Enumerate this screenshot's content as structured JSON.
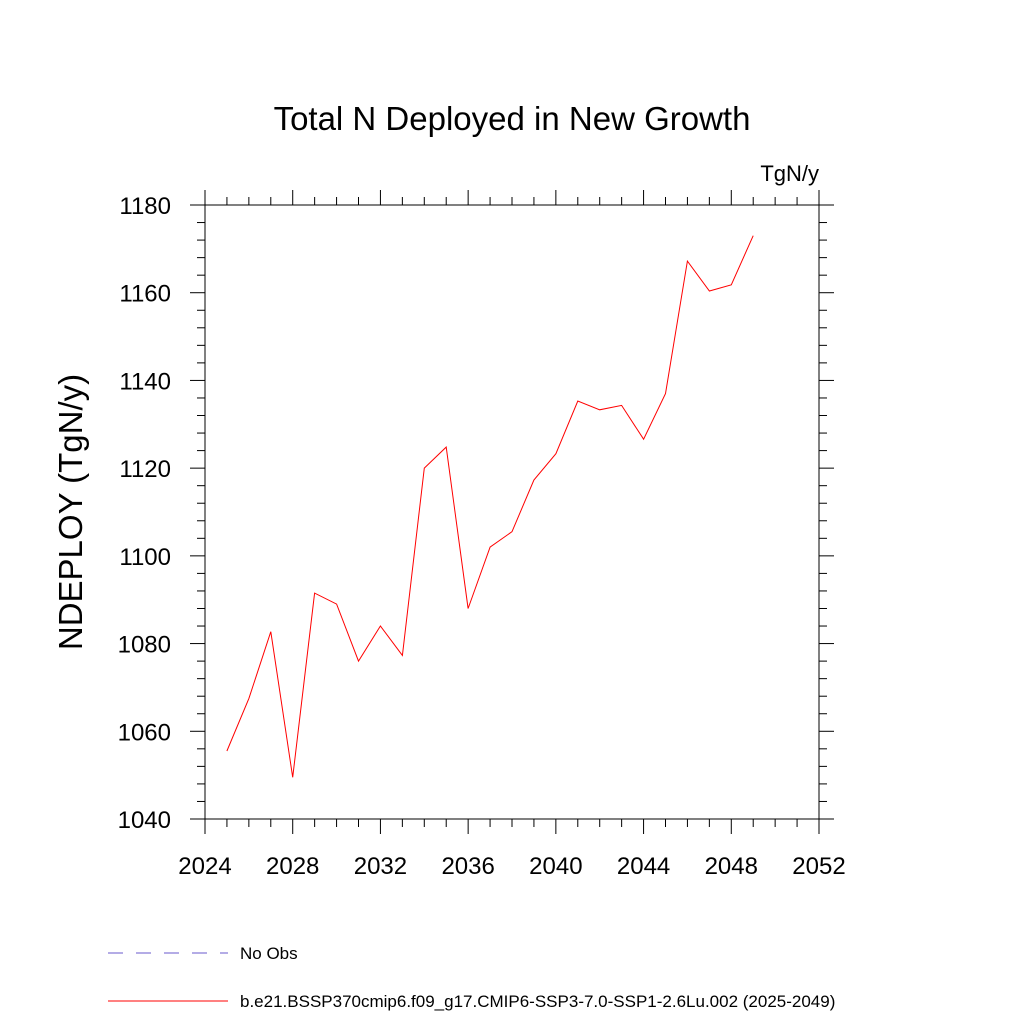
{
  "chart_data": {
    "type": "line",
    "title": "Total N Deployed in New Growth",
    "units_label": "TgN/y",
    "ylabel": "NDEPLOY  (TgN/y)",
    "xlabel": "",
    "xlim": [
      2024,
      2052
    ],
    "ylim": [
      1040,
      1180
    ],
    "xticks": [
      2024,
      2028,
      2032,
      2036,
      2040,
      2044,
      2048,
      2052
    ],
    "yticks": [
      1040,
      1060,
      1080,
      1100,
      1120,
      1140,
      1160,
      1180
    ],
    "grid": false,
    "series": [
      {
        "name": "b.e21.BSSP370cmip6.f09_g17.CMIP6-SSP3-7.0-SSP1-2.6Lu.002 (2025-2049)",
        "color": "#ff0000",
        "x": [
          2025,
          2026,
          2027,
          2028,
          2029,
          2030,
          2031,
          2032,
          2033,
          2034,
          2035,
          2036,
          2037,
          2038,
          2039,
          2040,
          2041,
          2042,
          2043,
          2044,
          2045,
          2046,
          2047,
          2048,
          2049
        ],
        "values": [
          1055.5,
          1067.5,
          1082.7,
          1049.5,
          1091.5,
          1089.0,
          1076.0,
          1084.0,
          1077.3,
          1120.0,
          1124.8,
          1088.0,
          1102.0,
          1105.5,
          1117.3,
          1123.3,
          1135.3,
          1133.3,
          1134.3,
          1126.6,
          1137.0,
          1167.2,
          1160.4,
          1161.8,
          1173.0
        ]
      }
    ],
    "legend": {
      "placement": "bottom-left",
      "entries": [
        {
          "label": "No Obs",
          "color": "#6a5acd",
          "style": "dashed"
        },
        {
          "label": "b.e21.BSSP370cmip6.f09_g17.CMIP6-SSP3-7.0-SSP1-2.6Lu.002 (2025-2049)",
          "color": "#ff0000",
          "style": "solid"
        }
      ]
    }
  }
}
